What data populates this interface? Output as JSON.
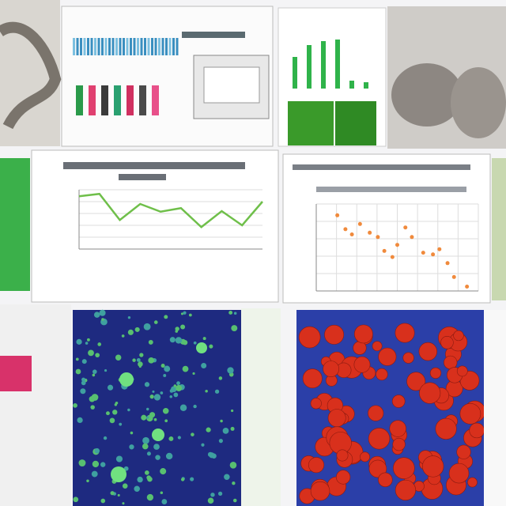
{
  "chart_data": [
    {
      "type": "line",
      "color": "#6fbf4a",
      "x": [
        0,
        1,
        2,
        3,
        4,
        5,
        6,
        7,
        8,
        9
      ],
      "values": [
        89,
        93,
        49,
        76,
        63,
        69,
        37,
        64,
        40,
        80
      ],
      "xlim": [
        0,
        9
      ],
      "ylim": [
        0,
        100
      ]
    },
    {
      "type": "scatter",
      "color": "#f08a3c",
      "x": [
        13,
        18,
        22,
        27,
        33,
        38,
        42,
        47,
        50,
        55,
        59,
        66,
        72,
        76,
        81,
        85,
        93
      ],
      "values": [
        87,
        71,
        65,
        77,
        67,
        62,
        46,
        39,
        53,
        73,
        62,
        44,
        42,
        48,
        32,
        16,
        5
      ],
      "xlim": [
        0,
        100
      ],
      "ylim": [
        0,
        100
      ]
    }
  ]
}
